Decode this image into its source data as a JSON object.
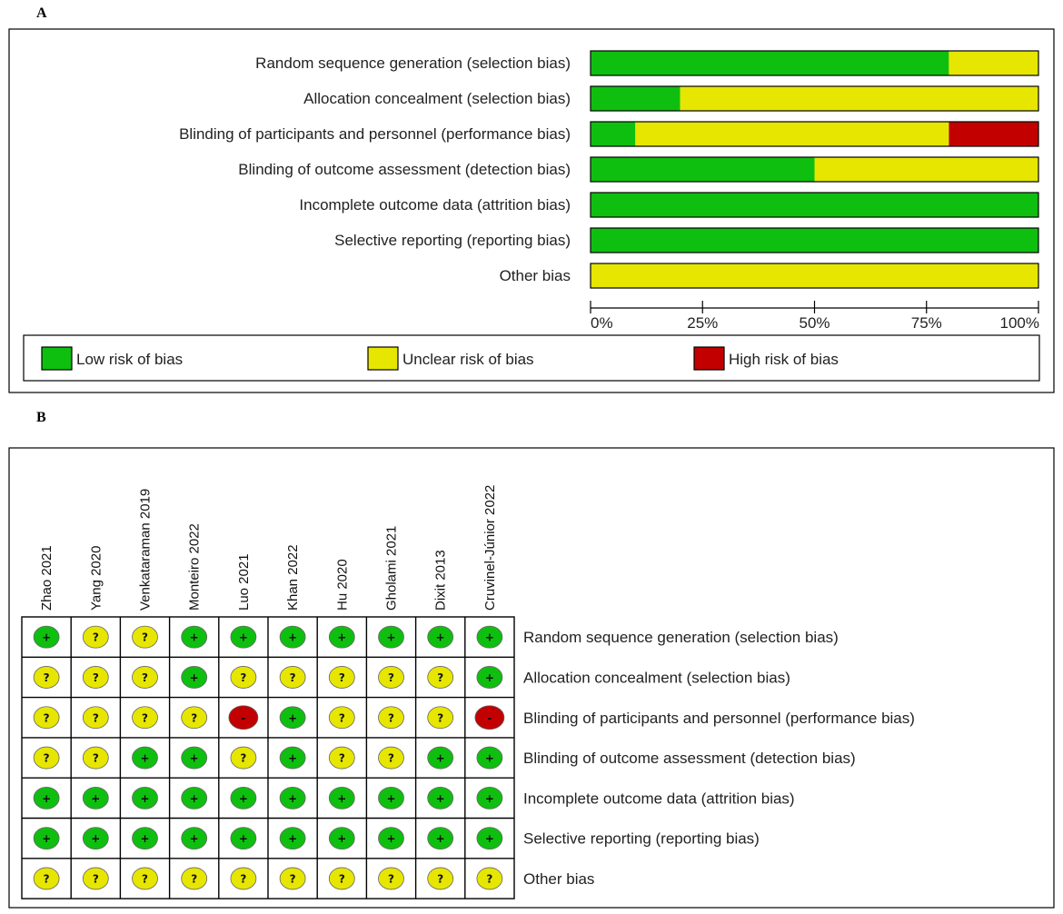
{
  "panel_labels": {
    "a": "A",
    "b": "B"
  },
  "colors": {
    "low": "#0fbf0f",
    "unclear": "#e6e600",
    "high": "#c20000",
    "frame": "#000000"
  },
  "chart_data": [
    {
      "type": "bar",
      "orientation": "horizontal-stacked-percent",
      "categories": [
        "Random sequence generation (selection bias)",
        "Allocation concealment (selection bias)",
        "Blinding of participants and personnel (performance bias)",
        "Blinding of outcome assessment (detection bias)",
        "Incomplete outcome data (attrition bias)",
        "Selective reporting (reporting bias)",
        "Other bias"
      ],
      "series": [
        {
          "name": "Low risk of bias",
          "key": "low",
          "values": [
            80,
            20,
            10,
            50,
            100,
            100,
            0
          ]
        },
        {
          "name": "Unclear risk of bias",
          "key": "unclear",
          "values": [
            20,
            80,
            70,
            50,
            0,
            0,
            100
          ]
        },
        {
          "name": "High risk of bias",
          "key": "high",
          "values": [
            0,
            0,
            20,
            0,
            0,
            0,
            0
          ]
        }
      ],
      "xticks": [
        "0%",
        "25%",
        "50%",
        "75%",
        "100%"
      ],
      "xlim": [
        0,
        100
      ],
      "legend": [
        "Low risk of bias",
        "Unclear risk of bias",
        "High risk of bias"
      ],
      "legend_position": "bottom"
    },
    {
      "type": "table",
      "studies": [
        "Zhao 2021",
        "Yang 2020",
        "Venkataraman 2019",
        "Monteiro 2022",
        "Luo 2021",
        "Khan 2022",
        "Hu 2020",
        "Gholami 2021",
        "Dixit 2013",
        "Cruvinel-Júnior 2022"
      ],
      "domains": [
        "Random sequence generation (selection bias)",
        "Allocation concealment (selection bias)",
        "Blinding of participants and personnel (performance bias)",
        "Blinding of outcome assessment (detection bias)",
        "Incomplete outcome data (attrition bias)",
        "Selective reporting (reporting bias)",
        "Other bias"
      ],
      "symbols": {
        "low": "+",
        "unclear": "?",
        "high": "-"
      },
      "judgements": [
        [
          "low",
          "unclear",
          "unclear",
          "low",
          "low",
          "low",
          "low",
          "low",
          "low",
          "low"
        ],
        [
          "unclear",
          "unclear",
          "unclear",
          "low",
          "unclear",
          "unclear",
          "unclear",
          "unclear",
          "unclear",
          "low"
        ],
        [
          "unclear",
          "unclear",
          "unclear",
          "unclear",
          "high",
          "low",
          "unclear",
          "unclear",
          "unclear",
          "high"
        ],
        [
          "unclear",
          "unclear",
          "low",
          "low",
          "unclear",
          "low",
          "unclear",
          "unclear",
          "low",
          "low"
        ],
        [
          "low",
          "low",
          "low",
          "low",
          "low",
          "low",
          "low",
          "low",
          "low",
          "low"
        ],
        [
          "low",
          "low",
          "low",
          "low",
          "low",
          "low",
          "low",
          "low",
          "low",
          "low"
        ],
        [
          "unclear",
          "unclear",
          "unclear",
          "unclear",
          "unclear",
          "unclear",
          "unclear",
          "unclear",
          "unclear",
          "unclear"
        ]
      ]
    }
  ]
}
